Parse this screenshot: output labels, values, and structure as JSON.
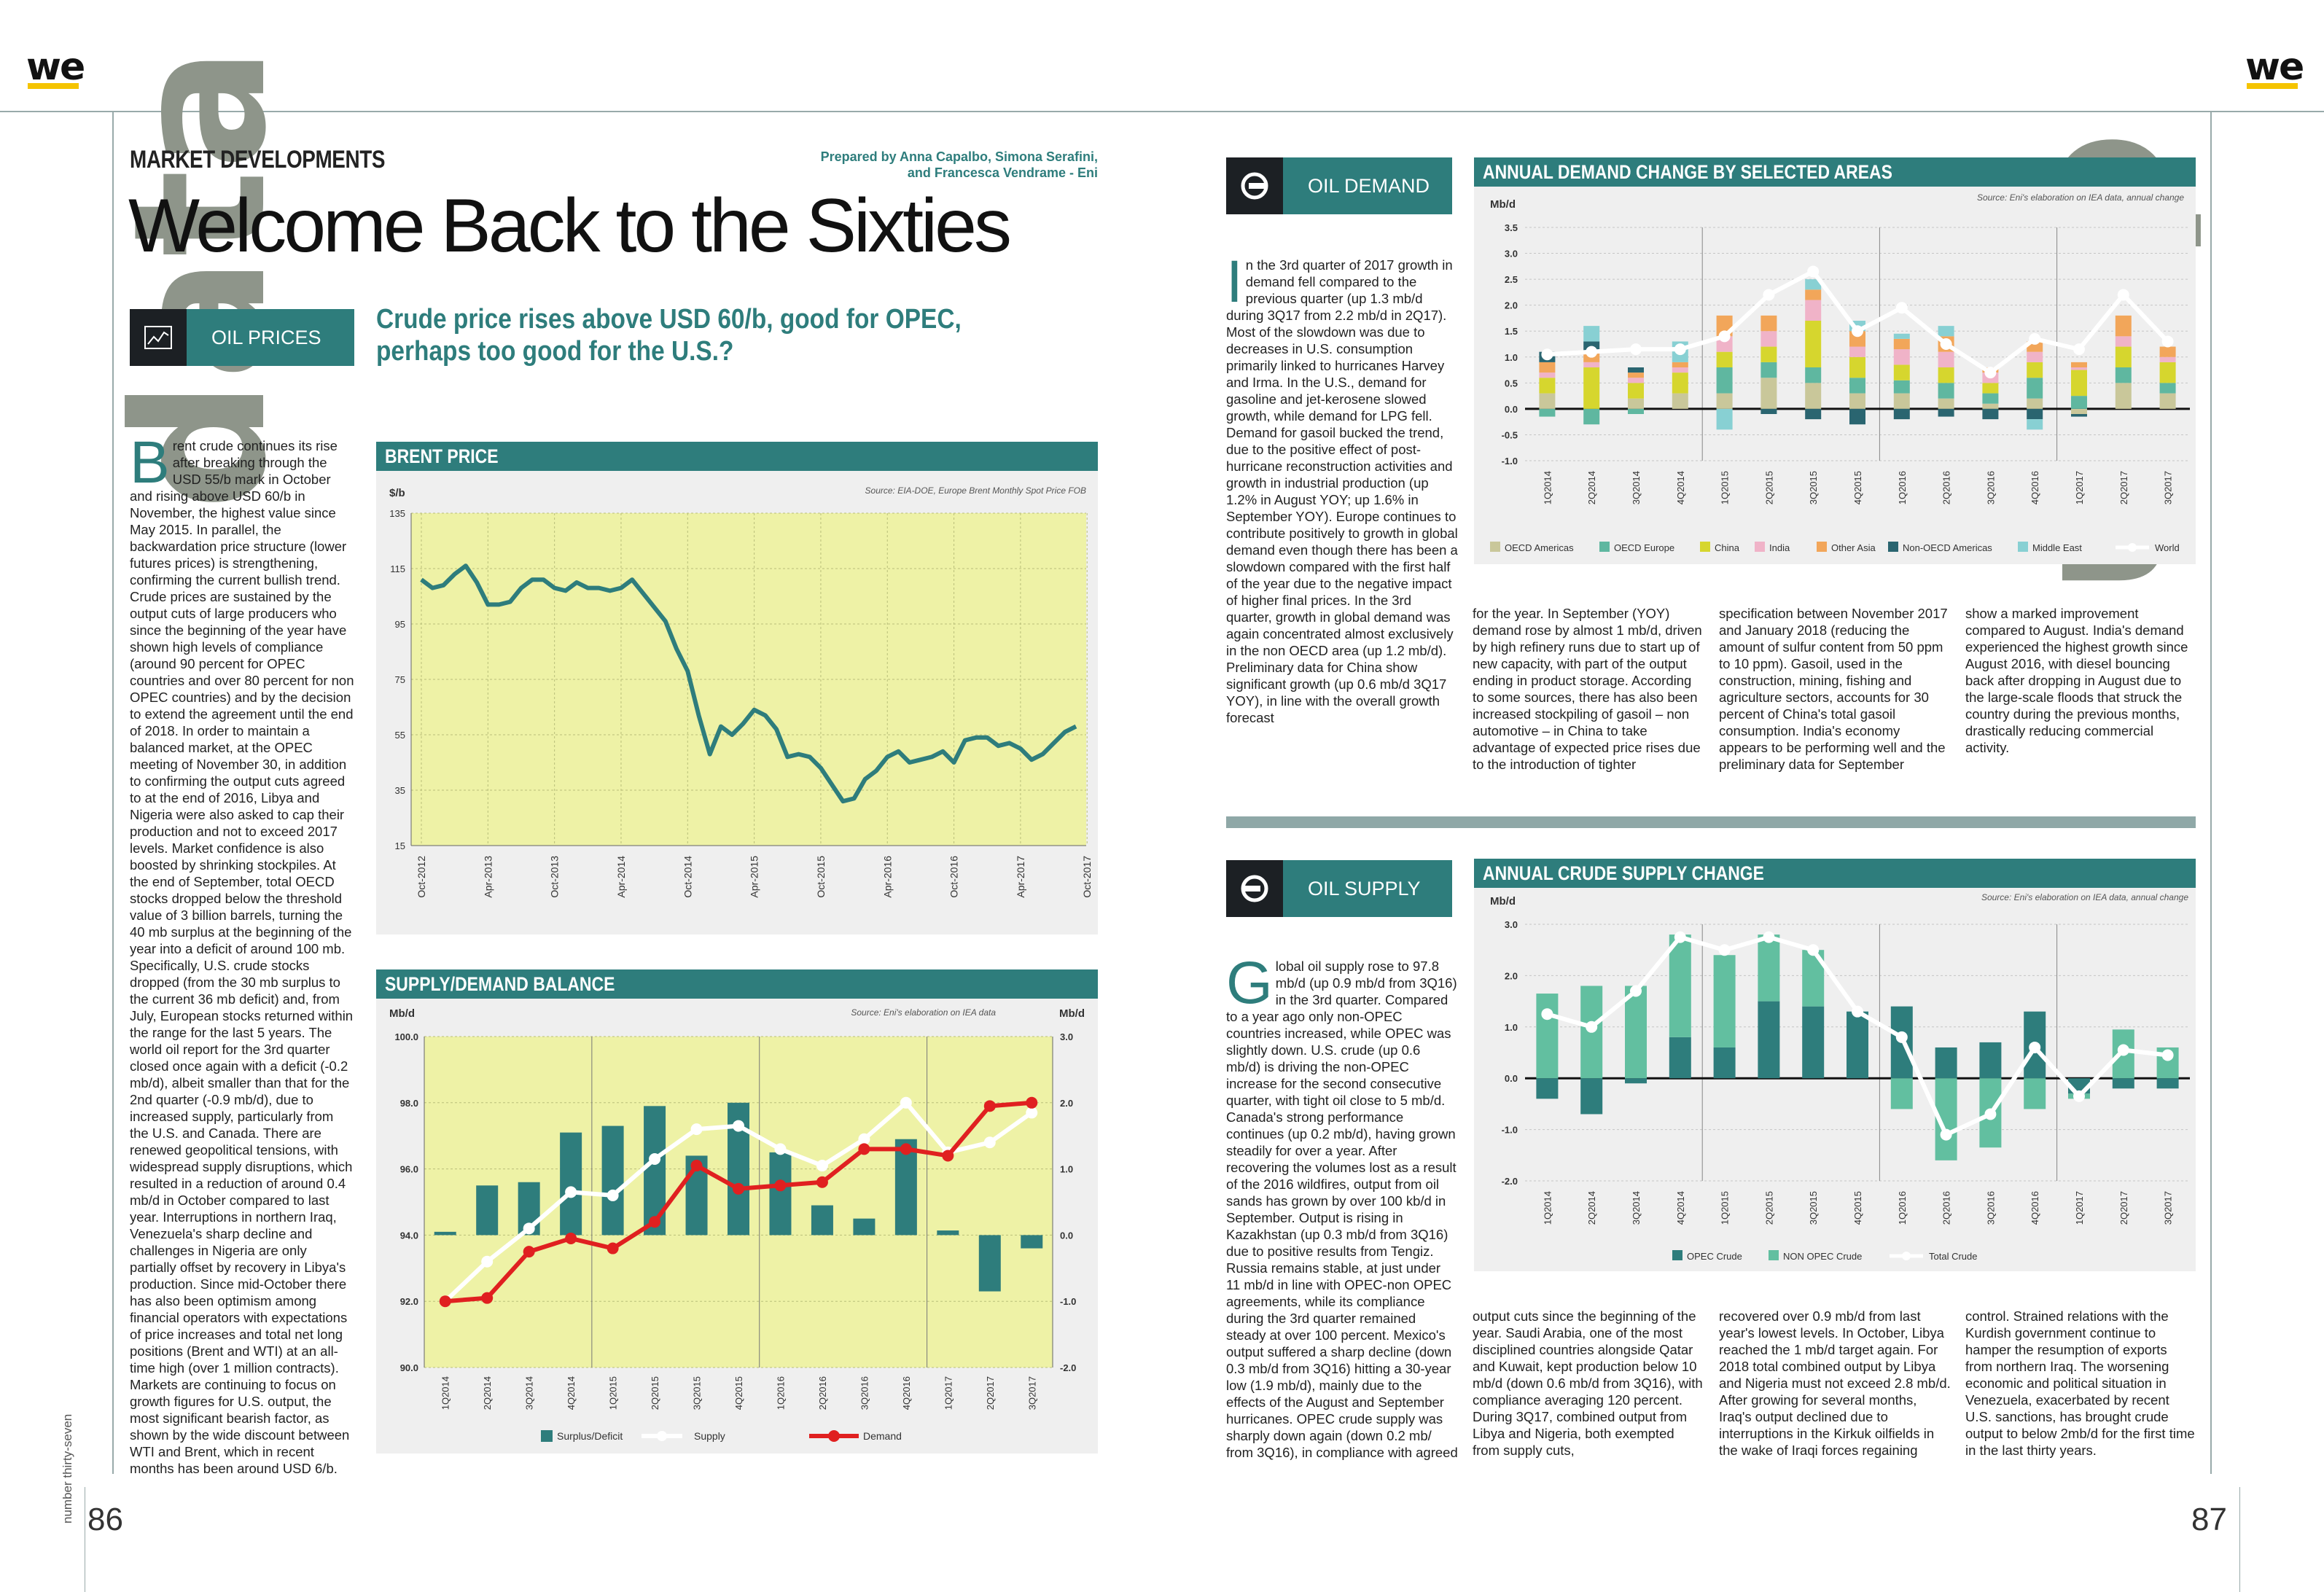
{
  "brand": {
    "logo": "we",
    "accent": "#f5c400",
    "teal": "#2e7d7c"
  },
  "side_word": "data",
  "left_page": {
    "kicker": "MARKET DEVELOPMENTS",
    "byline_1": "Prepared by Anna Capalbo, Simona Serafini,",
    "byline_2": "and Francesca Vendrame - Eni",
    "headline": "Welcome Back to the Sixties",
    "section_tag": {
      "label": "OIL PRICES",
      "icon": "chart-icon"
    },
    "subhead": "Crude price rises above USD 60/b, good for OPEC, perhaps too good for the U.S.?",
    "body_dropcap": "B",
    "body_text": "rent crude continues its rise after breaking through the USD 55/b mark in October and rising above USD 60/b in November, the highest value since May 2015. In parallel, the backwardation price structure (lower futures prices) is strengthening, confirming the current bullish trend. Crude prices are sustained by the output cuts of large producers who since the beginning of the year have shown high levels of compliance (around 90 percent for OPEC countries and over 80 percent for non OPEC countries) and by the decision to extend the agreement until the end of 2018. In order to maintain a balanced market, at the OPEC meeting of November 30, in addition to confirming the output cuts agreed to at the end of 2016, Libya and Nigeria were also asked to cap their production and not to exceed 2017 levels. Market confidence is also boosted by shrinking stockpiles. At the end of September, total OECD stocks dropped below the threshold value of 3 billion barrels, turning the 40 mb surplus at the beginning of the year into a deficit of around 100 mb. Specifically, U.S. crude stocks dropped (from the 30 mb surplus to the current 36 mb deficit) and, from July, European stocks returned within the range for the last 5 years. The world oil report for the 3rd quarter closed once again with a deficit (-0.2 mb/d), albeit smaller than that for the 2nd quarter (-0.9 mb/d), due to increased supply, particularly from the U.S. and Canada. There are renewed geopolitical tensions, with widespread supply disruptions, which resulted in a reduction of around 0.4 mb/d in October compared to last year. Interruptions in northern Iraq, Venezuela's sharp decline and challenges in Nigeria are only partially offset by recovery in Libya's production. Since mid-October there has also been optimism among financial operators with expectations of price increases and total net long positions (Brent and WTI) at an all-time high (over 1 million contracts). Markets are continuing to focus on growth figures for U.S. output, the most significant bearish factor, as shown by the wide discount between WTI and Brent, which in recent months has been around USD 6/b.",
    "page_number": "86",
    "side_issue": "number thirty-seven"
  },
  "right_page": {
    "demand_tag": {
      "label": "OIL DEMAND",
      "icon": "arrow-circle-right-icon"
    },
    "demand_dropcap": "I",
    "demand_col1": "n the 3rd quarter of 2017 growth in demand fell compared to the previous quarter (up 1.3 mb/d during 3Q17 from 2.2 mb/d in 2Q17). Most of the slowdown was due to decreases in U.S. consumption primarily linked to hurricanes Harvey and Irma. In the U.S., demand for gasoline and jet-kerosene slowed growth, while demand for LPG fell. Demand for gasoil bucked the trend, due to the positive effect of post-hurricane reconstruction activities and growth in industrial production (up 1.2% in August YOY; up 1.6% in September YOY). Europe continues to contribute positively to growth in global demand even though there has been a slowdown compared with the first half of the year due to the negative impact of higher final prices. In the 3rd quarter, growth in global demand was again concentrated almost exclusively in the non OECD area (up 1.2 mb/d). Preliminary data for China show significant growth (up 0.6 mb/d 3Q17 YOY), in line with the overall growth forecast",
    "demand_col2": "for the year. In September (YOY) demand rose by almost 1 mb/d, driven by high refinery runs due to start up of new capacity, with part of the output ending in product storage. According to some sources, there has also been increased stockpiling of gasoil – non automotive – in China to take advantage of expected price rises due to the introduction of tighter",
    "demand_col3": "specification between November 2017 and January 2018 (reducing the amount of sulfur content from 50 ppm to 10 ppm). Gasoil, used in the construction, mining, fishing and agriculture sectors, accounts for 30 percent of China's total gasoil consumption. India's economy appears to be performing well and the preliminary data for September",
    "demand_col4": "show a marked improvement compared to August. India's demand experienced the highest growth since August 2016, with diesel bouncing back after dropping in August due to the large-scale floods that struck the country during the previous months, drastically reducing commercial activity.",
    "supply_tag": {
      "label": "OIL SUPPLY",
      "icon": "arrow-circle-left-icon"
    },
    "supply_dropcap": "G",
    "supply_col1": "lobal oil supply rose to 97.8 mb/d (up 0.9 mb/d from 3Q16) in the 3rd quarter. Compared to a year ago only non-OPEC countries increased, while OPEC was slightly down. U.S. crude (up 0.6 mb/d) is driving the non-OPEC increase for the second consecutive quarter, with tight oil close to 5 mb/d. Canada's strong performance continues (up 0.2 mb/d), having grown steadily for over a year. After recovering the volumes lost as a result of the 2016 wildfires, output from oil sands has grown by over 100 kb/d in September. Output is rising in Kazakhstan (up 0.3 mb/d from 3Q16) due to positive results from Tengiz. Russia remains stable, at just under 11 mb/d in line with OPEC-non OPEC agreements, while its compliance during the 3rd quarter remained steady at over 100 percent. Mexico's output suffered a sharp decline (down 0.3 mb/d from 3Q16) hitting a 30-year low (1.9 mb/d), mainly due to the effects of the August and September hurricanes. OPEC crude supply was sharply down again (down 0.2 mb/ from 3Q16), in compliance with agreed",
    "supply_col2": "output cuts since the beginning of the year. Saudi Arabia, one of the most disciplined countries alongside Qatar and Kuwait, kept production below 10 mb/d (down 0.6 mb/d from 3Q16), with compliance averaging 120 percent. During 3Q17, combined output from Libya and Nigeria, both exempted from supply cuts,",
    "supply_col3": "recovered over 0.9 mb/d from last year's lowest levels. In October, Libya reached the 1 mb/d target again. For 2018 total combined output by Libya and Nigeria must not exceed 2.8 mb/d. After growing for several months, Iraq's output declined due to interruptions in the Kirkuk oilfields in the wake of Iraqi forces regaining",
    "supply_col4": "control. Strained relations with the Kurdish government continue to hamper the resumption of exports from northern Iraq. The worsening economic and political situation in Venezuela, exacerbated by recent U.S. sanctions, has brought crude output to below 2mb/d for the first time in the last thirty years.",
    "page_number": "87"
  },
  "chart_data": [
    {
      "id": "brent",
      "type": "line",
      "title": "BRENT PRICE",
      "ylabel": "$/b",
      "source": "Source: EIA-DOE, Europe Brent Monthly Spot Price FOB",
      "ylim": [
        15,
        135
      ],
      "yticks": [
        15,
        35,
        55,
        75,
        95,
        115,
        135
      ],
      "xticks": [
        "Oct-2012",
        "Apr-2013",
        "Oct-2013",
        "Apr-2014",
        "Oct-2014",
        "Apr-2015",
        "Oct-2015",
        "Apr-2016",
        "Oct-2016",
        "Apr-2017",
        "Oct-2017"
      ],
      "color": "#2e7d7c",
      "values": [
        111,
        108,
        109,
        113,
        116,
        110,
        102,
        102,
        103,
        108,
        111,
        111,
        108,
        107,
        110,
        108,
        108,
        107,
        108,
        111,
        106,
        101,
        96,
        86,
        78,
        62,
        48,
        58,
        55,
        59,
        64,
        62,
        57,
        47,
        48,
        47,
        43,
        37,
        31,
        32,
        39,
        42,
        47,
        49,
        45,
        46,
        47,
        49,
        45,
        53,
        54,
        54,
        51,
        52,
        50,
        46,
        48,
        52,
        56,
        58
      ],
      "grid": true
    },
    {
      "id": "balance",
      "type": "bar+line",
      "title": "SUPPLY/DEMAND BALANCE",
      "ylabel": "Mb/d",
      "ylabel_right": "Mb/d",
      "source": "Source: Eni's elaboration on IEA data",
      "categories": [
        "1Q2014",
        "2Q2014",
        "3Q2014",
        "4Q2014",
        "1Q2015",
        "2Q2015",
        "3Q2015",
        "4Q2015",
        "1Q2016",
        "2Q2016",
        "3Q2016",
        "4Q2016",
        "1Q2017",
        "2Q2017",
        "3Q2017"
      ],
      "left_axis": {
        "ylim": [
          90,
          100
        ],
        "ticks": [
          "90.0",
          "92.0",
          "94.0",
          "96.0",
          "98.0",
          "100.0"
        ]
      },
      "right_axis": {
        "ylim": [
          -2,
          3
        ],
        "ticks": [
          "-2.0",
          "-1.0",
          "0.0",
          "1.0",
          "2.0",
          "3.0"
        ]
      },
      "series": [
        {
          "name": "Surplus/Deficit",
          "kind": "bar",
          "axis": "right",
          "color": "#2e7d7c",
          "values": [
            0.05,
            0.75,
            0.8,
            1.55,
            1.65,
            1.95,
            1.2,
            2.0,
            1.25,
            0.45,
            0.25,
            1.45,
            0.07,
            -0.85,
            -0.2
          ]
        },
        {
          "name": "Supply",
          "kind": "line",
          "axis": "left",
          "color": "#ffffff",
          "values": [
            92.0,
            93.2,
            94.2,
            95.3,
            95.2,
            96.3,
            97.2,
            97.3,
            96.6,
            96.1,
            96.9,
            98.0,
            96.5,
            96.8,
            97.7
          ]
        },
        {
          "name": "Demand",
          "kind": "line",
          "axis": "left",
          "color": "#e02020",
          "values": [
            92.0,
            92.1,
            93.5,
            93.9,
            93.6,
            94.4,
            96.1,
            95.4,
            95.5,
            95.6,
            96.6,
            96.6,
            96.4,
            97.9,
            98.0
          ]
        }
      ]
    },
    {
      "id": "demand",
      "type": "stacked-bar+line",
      "title": "ANNUAL DEMAND CHANGE BY SELECTED AREAS",
      "ylabel": "Mb/d",
      "source": "Source: Eni's elaboration on IEA data, annual change",
      "ylim": [
        -1.0,
        3.5
      ],
      "yticks": [
        "-1.0",
        "-0.5",
        "0.0",
        "0.5",
        "1.0",
        "1.5",
        "2.0",
        "2.5",
        "3.0",
        "3.5"
      ],
      "categories": [
        "1Q2014",
        "2Q2014",
        "3Q2014",
        "4Q2014",
        "1Q2015",
        "2Q2015",
        "3Q2015",
        "4Q2015",
        "1Q2016",
        "2Q2016",
        "3Q2016",
        "4Q2016",
        "1Q2017",
        "2Q2017",
        "3Q2017"
      ],
      "series": [
        {
          "name": "OECD Americas",
          "color": "#c9c79a",
          "values": [
            0.3,
            0.0,
            0.2,
            0.3,
            0.3,
            0.6,
            0.5,
            0.3,
            0.3,
            0.2,
            0.1,
            0.2,
            -0.1,
            0.5,
            0.3
          ]
        },
        {
          "name": "OECD Europe",
          "color": "#5fb7a0",
          "values": [
            -0.15,
            -0.3,
            -0.1,
            0.0,
            0.5,
            0.3,
            0.3,
            0.3,
            0.25,
            0.3,
            0.2,
            0.4,
            0.25,
            0.3,
            0.2
          ]
        },
        {
          "name": "China",
          "color": "#d6d62e",
          "values": [
            0.3,
            0.8,
            0.3,
            0.4,
            0.3,
            0.3,
            0.9,
            0.4,
            0.3,
            0.3,
            0.2,
            0.3,
            0.5,
            0.4,
            0.4
          ]
        },
        {
          "name": "India",
          "color": "#f0b3c8",
          "values": [
            0.1,
            0.1,
            0.1,
            0.1,
            0.3,
            0.3,
            0.4,
            0.2,
            0.3,
            0.3,
            0.2,
            0.2,
            0.05,
            0.2,
            0.1
          ]
        },
        {
          "name": "Other Asia",
          "color": "#f2a65a",
          "values": [
            0.2,
            0.2,
            0.1,
            0.1,
            0.4,
            0.3,
            0.2,
            0.3,
            0.2,
            0.3,
            0.1,
            0.2,
            0.1,
            0.4,
            0.2
          ]
        },
        {
          "name": "Non-OECD Americas",
          "color": "#2a6570",
          "values": [
            0.2,
            0.2,
            0.1,
            0.0,
            0.0,
            -0.1,
            -0.2,
            -0.3,
            -0.2,
            -0.15,
            -0.2,
            -0.2,
            -0.05,
            0.0,
            0.0
          ]
        },
        {
          "name": "Middle East",
          "color": "#88d0d3",
          "values": [
            0.0,
            0.3,
            0.0,
            0.4,
            -0.4,
            0.0,
            0.2,
            0.2,
            0.1,
            0.2,
            0.0,
            -0.2,
            0.0,
            0.0,
            0.0
          ]
        },
        {
          "name": "World",
          "kind": "line",
          "color": "#ffffff",
          "values": [
            1.05,
            1.1,
            1.15,
            1.15,
            1.4,
            2.2,
            2.65,
            1.5,
            1.95,
            1.25,
            0.7,
            1.35,
            1.15,
            2.2,
            1.3
          ]
        }
      ],
      "grid": true
    },
    {
      "id": "supply",
      "type": "stacked-bar+line",
      "title": "ANNUAL CRUDE SUPPLY CHANGE",
      "ylabel": "Mb/d",
      "source": "Source: Eni's elaboration on IEA data, annual change",
      "ylim": [
        -2.0,
        3.0
      ],
      "yticks": [
        "-2.0",
        "-1.0",
        "0.0",
        "1.0",
        "2.0",
        "3.0"
      ],
      "categories": [
        "1Q2014",
        "2Q2014",
        "3Q2014",
        "4Q2014",
        "1Q2015",
        "2Q2015",
        "3Q2015",
        "4Q2015",
        "1Q2016",
        "2Q2016",
        "3Q2016",
        "4Q2016",
        "1Q2017",
        "2Q2017",
        "3Q2017"
      ],
      "series": [
        {
          "name": "OPEC Crude",
          "color": "#2e7d7c",
          "values": [
            -0.4,
            -0.7,
            -0.1,
            0.8,
            0.6,
            1.5,
            1.4,
            1.3,
            1.4,
            0.6,
            0.7,
            1.3,
            -0.3,
            -0.2,
            -0.2
          ]
        },
        {
          "name": "NON OPEC Crude",
          "color": "#62bfa0",
          "values": [
            1.65,
            1.8,
            1.8,
            2.0,
            1.8,
            1.3,
            1.1,
            0.0,
            -0.6,
            -1.6,
            -1.35,
            -0.6,
            -0.1,
            0.95,
            0.6
          ]
        },
        {
          "name": "Total Crude",
          "kind": "line",
          "color": "#ffffff",
          "values": [
            1.25,
            1.0,
            1.7,
            2.75,
            2.5,
            2.75,
            2.5,
            1.3,
            0.8,
            -1.1,
            -0.7,
            0.6,
            -0.35,
            0.55,
            0.45
          ]
        }
      ],
      "grid": true
    }
  ]
}
